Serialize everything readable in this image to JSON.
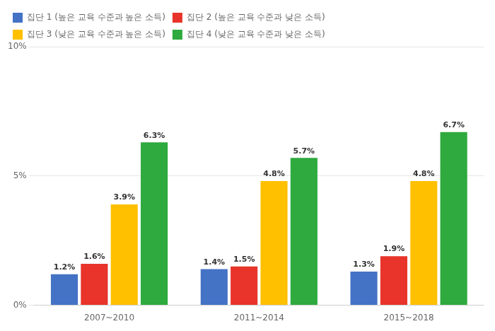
{
  "chart_data": {
    "type": "bar",
    "categories": [
      "2007~2010",
      "2011~2014",
      "2015~2018"
    ],
    "series": [
      {
        "name": "집단 1 (높은 교육 수준과 높은 소득)",
        "color": "#4472C4",
        "values": [
          1.2,
          1.4,
          1.3
        ],
        "value_labels": [
          "1.2%",
          "1.4%",
          "1.3%"
        ]
      },
      {
        "name": "집단 2 (높은 교육 수준과 낮은 소득)",
        "color": "#E8342A",
        "values": [
          1.6,
          1.5,
          1.9
        ],
        "value_labels": [
          "1.6%",
          "1.5%",
          "1.9%"
        ]
      },
      {
        "name": "집단 3 (낮은 교육 수준과 높은 소득)",
        "color": "#FFC000",
        "values": [
          3.9,
          4.8,
          4.8
        ],
        "value_labels": [
          "3.9%",
          "4.8%",
          "4.8%"
        ]
      },
      {
        "name": "집단 4 (낮은 교육 수준과 낮은 소득)",
        "color": "#2EAA3E",
        "values": [
          6.3,
          5.7,
          6.7
        ],
        "value_labels": [
          "6.3%",
          "5.7%",
          "6.7%"
        ]
      }
    ],
    "ylim": [
      0,
      10
    ],
    "yticks": [
      {
        "value": 0,
        "label": "0%"
      },
      {
        "value": 5,
        "label": "5%"
      },
      {
        "value": 10,
        "label": "10%"
      }
    ],
    "grid": true,
    "legend": "upper left",
    "data_labels": true
  }
}
